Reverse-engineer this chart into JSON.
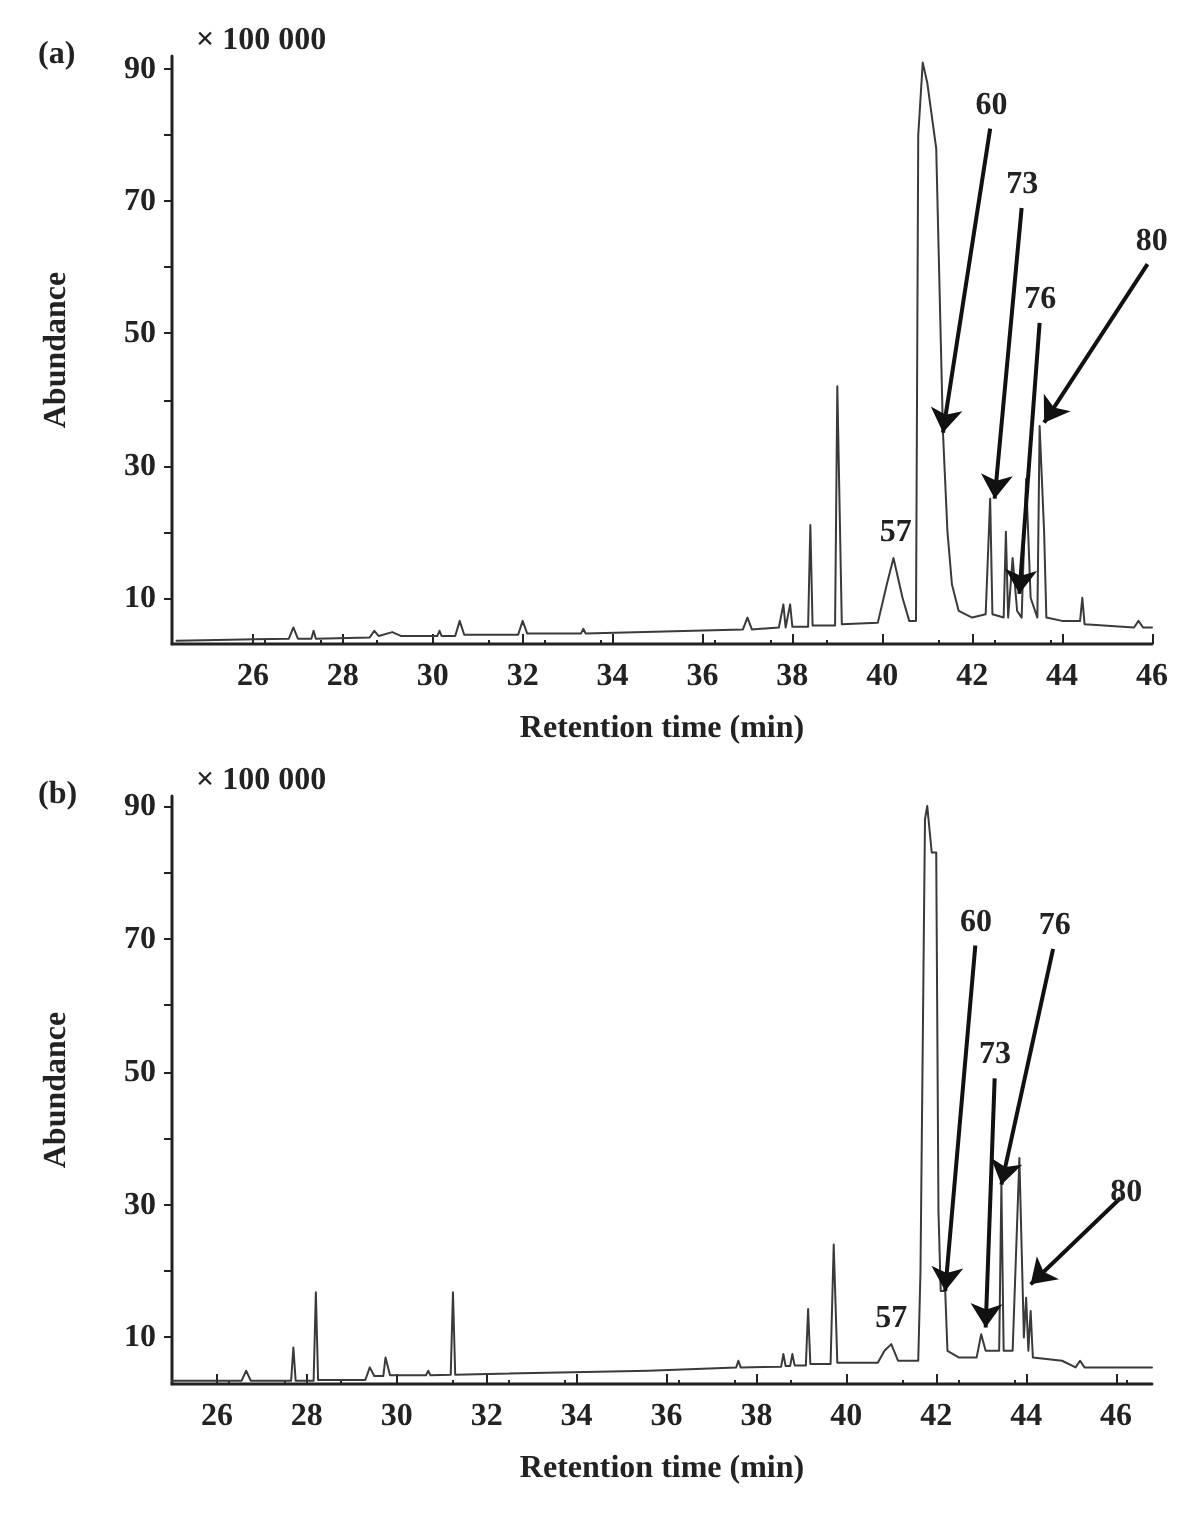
{
  "chart_data": [
    {
      "type": "line",
      "title": "(a)",
      "xlabel": "Retention time (min)",
      "ylabel": "Abundance",
      "xlim": [
        24.2,
        46
      ],
      "xticks": [
        26,
        28,
        30,
        32,
        34,
        36,
        38,
        40,
        42,
        44,
        46
      ],
      "ylim": [
        3,
        92
      ],
      "yticks": [
        10,
        {
          "value": 20,
          "label": null
        },
        30,
        {
          "value": 40,
          "label": null
        },
        50,
        {
          "value": 60,
          "label": null
        },
        70,
        {
          "value": 80,
          "label": null
        },
        90
      ],
      "grid": false,
      "marker": "none",
      "line_style": "solid",
      "series": [
        {
          "color": "#3a3a3a",
          "x": [
            24.3,
            26.8,
            26.9,
            27.0,
            27.3,
            27.35,
            27.4,
            28.6,
            28.7,
            28.8,
            29.1,
            29.3,
            30.1,
            30.15,
            30.2,
            30.5,
            30.6,
            30.7,
            31.9,
            32.0,
            32.1,
            33.3,
            33.35,
            33.4,
            36.9,
            37.0,
            37.1,
            37.7,
            37.8,
            37.85,
            37.95,
            38.0,
            38.35,
            38.4,
            38.45,
            38.95,
            39.0,
            39.05,
            39.1,
            39.9,
            40.1,
            40.25,
            40.45,
            40.6,
            40.75,
            40.8,
            40.9,
            41.0,
            41.2,
            41.35,
            41.45,
            41.55,
            41.7,
            42.0,
            42.3,
            42.4,
            42.45,
            42.7,
            42.75,
            42.8,
            42.9,
            43.0,
            43.1,
            43.2,
            43.3,
            43.45,
            43.5,
            43.55,
            43.6,
            43.65,
            44.0,
            44.4,
            44.45,
            44.5,
            45.6,
            45.7,
            45.8,
            46.0
          ],
          "values": [
            3.5,
            3.8,
            5.5,
            3.8,
            3.8,
            5,
            3.8,
            4,
            5,
            4.2,
            4.8,
            4.2,
            4.2,
            5,
            4.2,
            4.2,
            6.5,
            4.4,
            4.4,
            6.5,
            4.6,
            4.6,
            5.3,
            4.6,
            5.2,
            7,
            5.2,
            5.5,
            9,
            5.5,
            9,
            5.6,
            5.6,
            21,
            5.8,
            5.8,
            42,
            24,
            6,
            6.2,
            12,
            16,
            10,
            6.5,
            6.5,
            80,
            91,
            88,
            78,
            35,
            20,
            12,
            8,
            7,
            7.5,
            25,
            7.5,
            7,
            20,
            7,
            16,
            8,
            7,
            28,
            10,
            7,
            36,
            28,
            20,
            7,
            6.5,
            6.5,
            10,
            6,
            5.5,
            6.5,
            5.5,
            5.5
          ]
        }
      ],
      "annotations": [
        "× 100 000",
        {
          "text": "57",
          "x": 40.3,
          "y": 16
        },
        {
          "text": "60",
          "x": 41.35,
          "y": 35
        },
        {
          "text": "73",
          "x": 42.5,
          "y": 25
        },
        {
          "text": "76",
          "x": 43.05,
          "y": 10.6
        },
        {
          "text": "80",
          "x": 43.6,
          "y": 36.5
        }
      ]
    },
    {
      "type": "line",
      "title": "(b)",
      "xlabel": "Retention time (min)",
      "ylabel": "Abundance",
      "xlim": [
        25,
        46.8
      ],
      "xticks": [
        26,
        28,
        30,
        32,
        34,
        36,
        38,
        40,
        42,
        44,
        46
      ],
      "ylim": [
        3,
        91.5
      ],
      "yticks": [
        10,
        {
          "value": 20,
          "label": null
        },
        30,
        {
          "value": 40,
          "label": null
        },
        50,
        {
          "value": 60,
          "label": null
        },
        70,
        {
          "value": 80,
          "label": null
        },
        90
      ],
      "grid": false,
      "marker": "none",
      "line_style": "solid",
      "series": [
        {
          "color": "#3a3a3a",
          "x": [
            25.0,
            26.55,
            26.65,
            26.75,
            27.65,
            27.7,
            27.75,
            28.15,
            28.2,
            28.25,
            29.3,
            29.4,
            29.5,
            29.7,
            29.75,
            29.85,
            30.65,
            30.7,
            30.75,
            31.2,
            31.25,
            31.3,
            35.6,
            37.55,
            37.6,
            37.65,
            38.55,
            38.6,
            38.65,
            38.75,
            38.8,
            38.85,
            39.1,
            39.15,
            39.2,
            39.65,
            39.72,
            39.8,
            40.7,
            40.85,
            41.0,
            41.15,
            41.6,
            41.65,
            41.75,
            41.8,
            41.9,
            42.0,
            42.05,
            42.1,
            42.2,
            42.25,
            42.5,
            42.9,
            43.0,
            43.1,
            43.4,
            43.45,
            43.5,
            43.7,
            43.85,
            43.95,
            44.0,
            44.05,
            44.1,
            44.15,
            44.8,
            45.1,
            45.2,
            45.3,
            46.8
          ],
          "values": [
            3.5,
            3.5,
            5,
            3.5,
            3.5,
            8.5,
            3.5,
            3.5,
            16.8,
            3.6,
            3.6,
            5.5,
            4.2,
            4.2,
            7,
            4.3,
            4.3,
            5,
            4.3,
            4.4,
            16.8,
            4.4,
            5,
            5.5,
            6.5,
            5.5,
            5.6,
            7.5,
            5.7,
            5.7,
            7.5,
            5.8,
            5.8,
            14.3,
            6,
            6,
            24,
            6.2,
            6.2,
            8,
            9,
            6.5,
            6.5,
            20,
            88,
            90,
            83,
            83,
            29,
            17,
            17,
            8,
            7,
            7,
            10.5,
            8,
            8,
            33,
            8,
            8,
            37,
            10,
            16,
            8,
            14,
            7,
            6.5,
            5.5,
            6.5,
            5.5,
            5.5
          ]
        }
      ],
      "annotations": [
        "× 100 000",
        {
          "text": "57",
          "x": 41.0,
          "y": 9
        },
        {
          "text": "60",
          "x": 42.2,
          "y": 17
        },
        {
          "text": "73",
          "x": 43.1,
          "y": 11.5
        },
        {
          "text": "76",
          "x": 43.45,
          "y": 33
        },
        {
          "text": "80",
          "x": 44.1,
          "y": 18
        }
      ]
    }
  ]
}
